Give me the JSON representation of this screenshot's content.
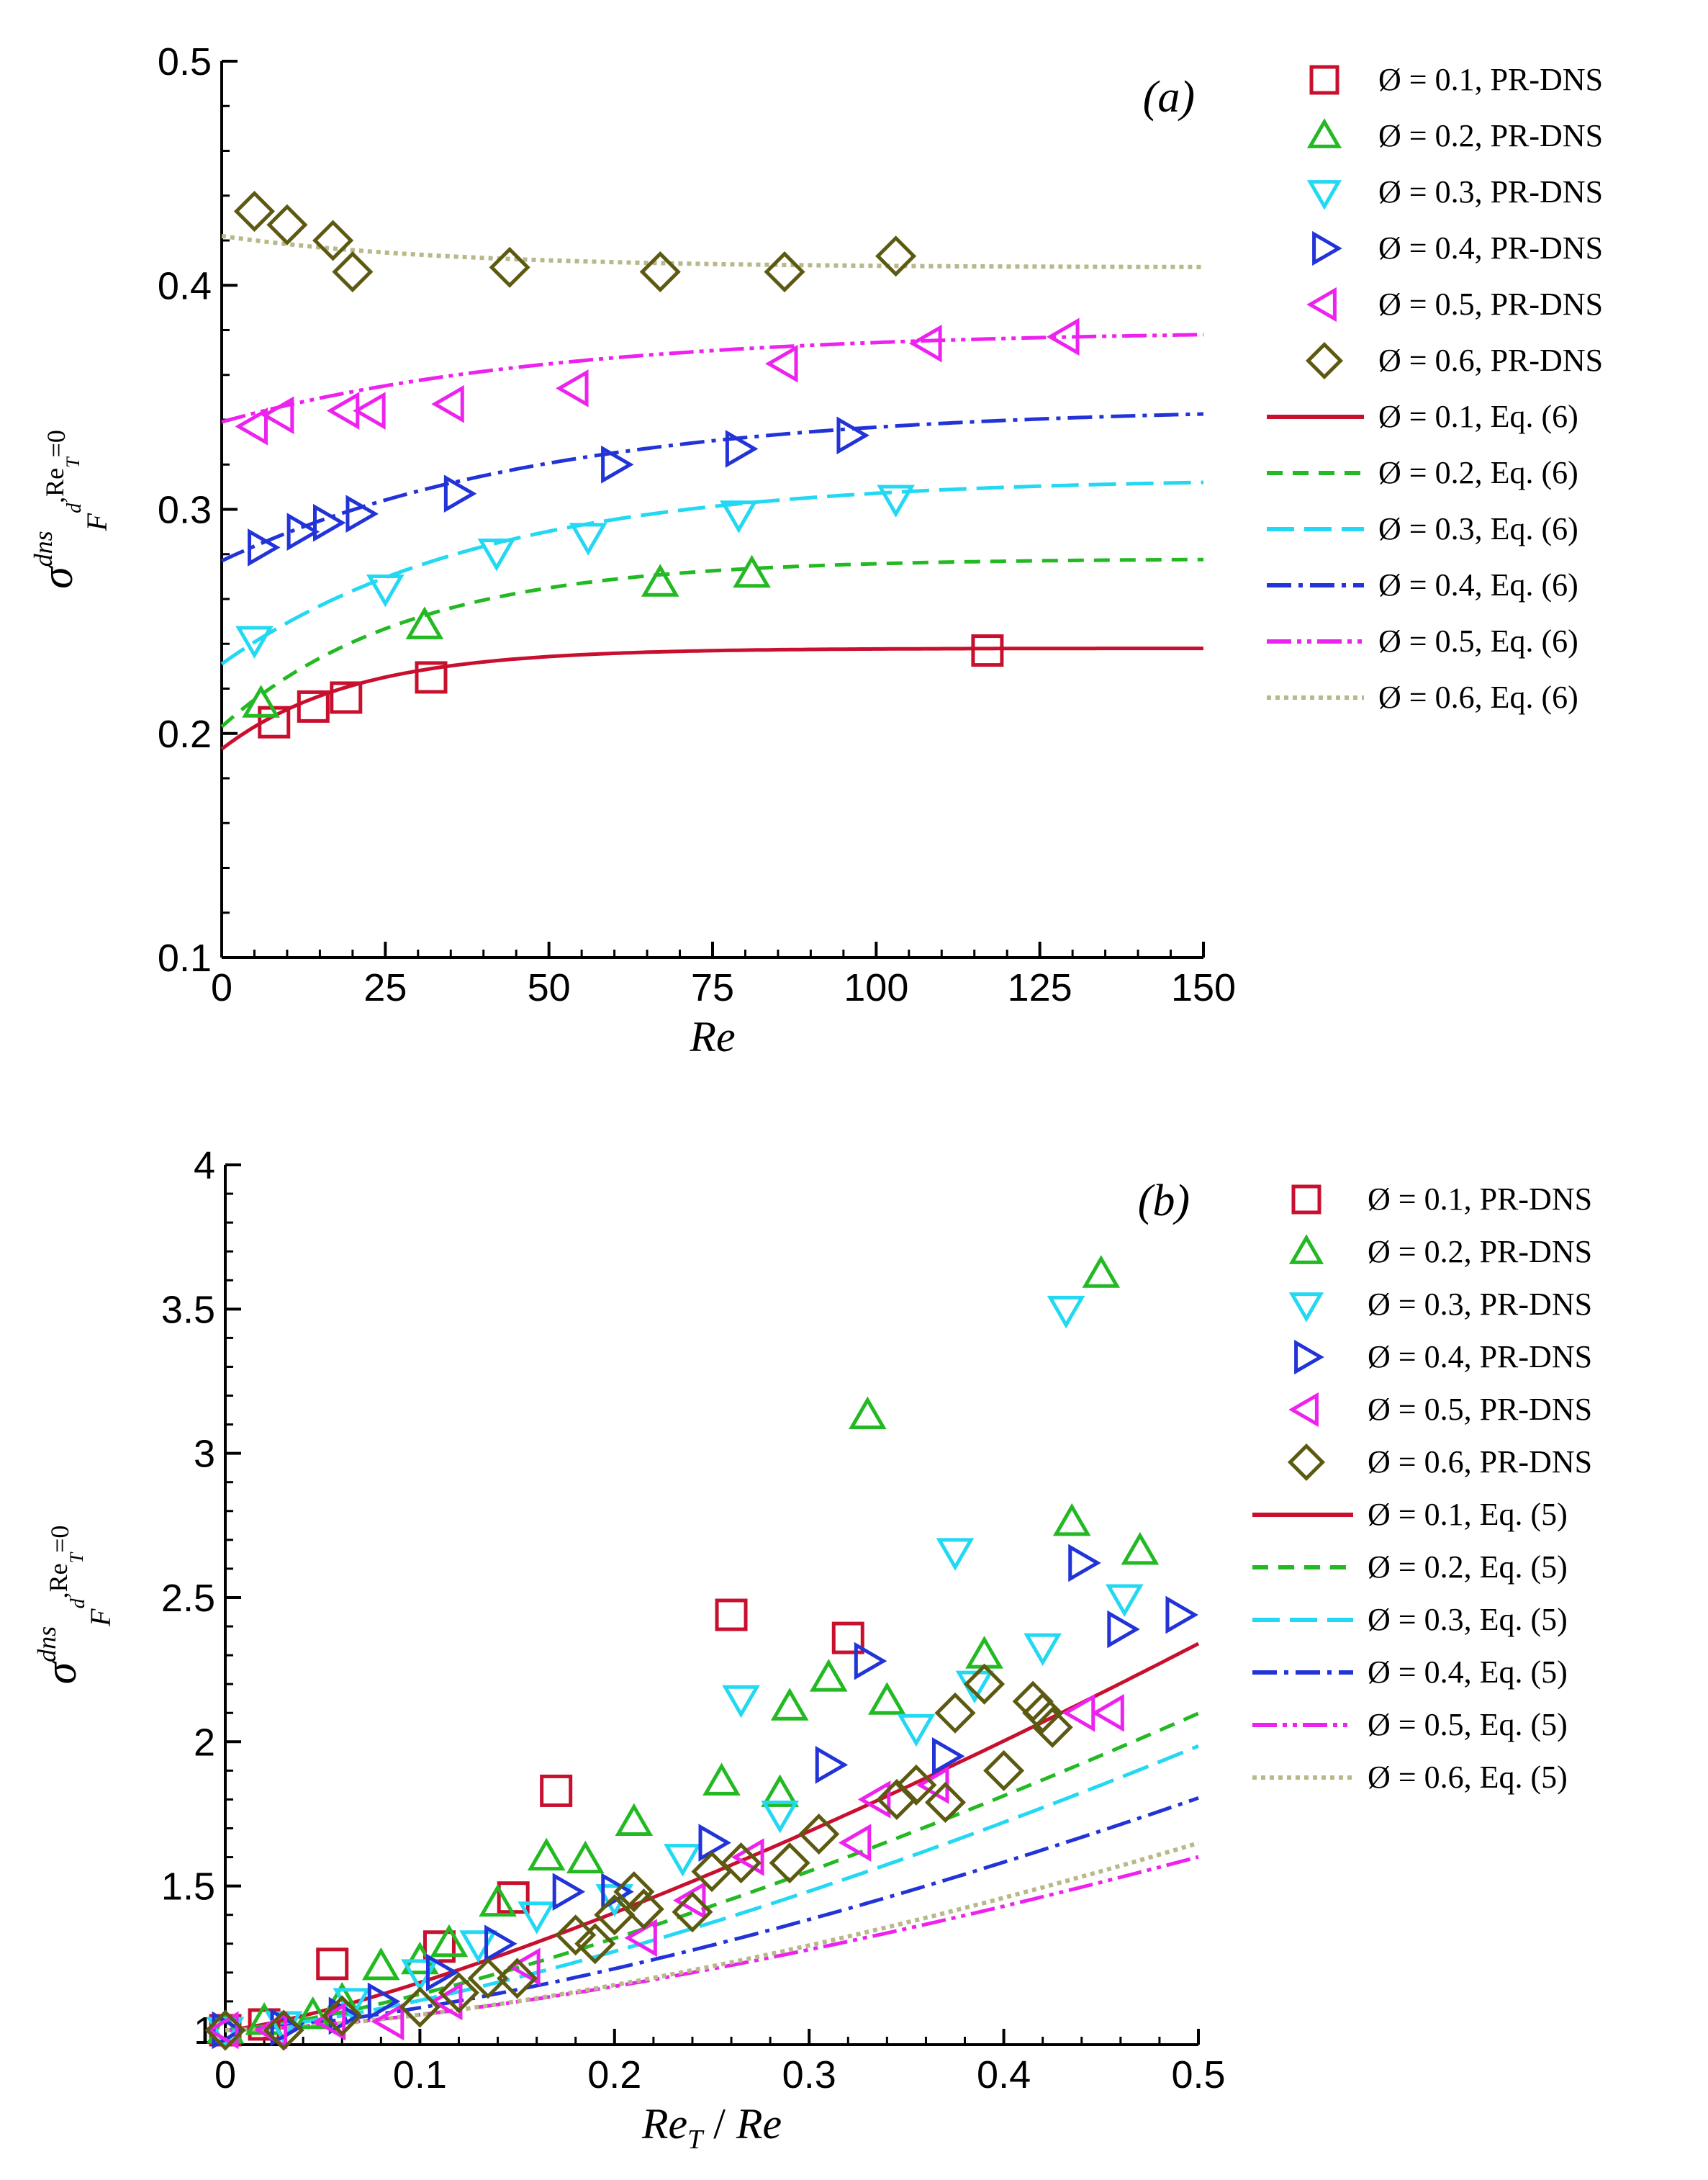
{
  "colors": [
    "#c8102e",
    "#22b922",
    "#22d8f2",
    "#2233d8",
    "#ee22ee",
    "#5c5a10"
  ],
  "series_labels": [
    "Ø = 0.1",
    "Ø = 0.2",
    "Ø = 0.3",
    "Ø = 0.4",
    "Ø = 0.5",
    "Ø = 0.6"
  ],
  "chart_data": [
    {
      "type": "scatter",
      "panel_label": "(a)",
      "xlabel": "Re",
      "ylabel": {
        "base": "σ",
        "sup": "dns",
        "sub": "F",
        "subsub": "d",
        "cond": ",Re",
        "condsub": "T",
        "condend": "=0"
      },
      "xlim": [
        0,
        150
      ],
      "ylim": [
        0.1,
        0.5
      ],
      "x_ticks": [
        0,
        25,
        50,
        75,
        100,
        125,
        150
      ],
      "x_tick_labels": [
        "0",
        "25",
        "50",
        "75",
        "100",
        "125",
        "150"
      ],
      "y_ticks": [
        0.1,
        0.2,
        0.3,
        0.4,
        0.5
      ],
      "y_tick_labels": [
        "0.1",
        "0.2",
        "0.3",
        "0.4",
        "0.5"
      ],
      "legend_markers": [
        "Ø = 0.1, PR-DNS",
        "Ø = 0.2, PR-DNS",
        "Ø = 0.3, PR-DNS",
        "Ø = 0.4, PR-DNS",
        "Ø = 0.5, PR-DNS",
        "Ø = 0.6, PR-DNS"
      ],
      "legend_lines": [
        "Ø = 0.1, Eq. (6)",
        "Ø = 0.2, Eq. (6)",
        "Ø = 0.3, Eq. (6)",
        "Ø = 0.4, Eq. (6)",
        "Ø = 0.5, Eq. (6)",
        "Ø = 0.6, Eq. (6)"
      ],
      "model_curves": [
        {
          "name": "Ø = 0.1, Eq. (6)",
          "y0": 0.193,
          "yinf": 0.238,
          "k": 0.05
        },
        {
          "name": "Ø = 0.2, Eq. (6)",
          "y0": 0.203,
          "yinf": 0.278,
          "k": 0.035
        },
        {
          "name": "Ø = 0.3, Eq. (6)",
          "y0": 0.231,
          "yinf": 0.314,
          "k": 0.025
        },
        {
          "name": "Ø = 0.4, Eq. (6)",
          "y0": 0.277,
          "yinf": 0.346,
          "k": 0.02
        },
        {
          "name": "Ø = 0.5, Eq. (6)",
          "y0": 0.339,
          "yinf": 0.38,
          "k": 0.02
        },
        {
          "name": "Ø = 0.6, Eq. (6)",
          "y0": 0.422,
          "yinf": 0.408,
          "k": 0.03
        }
      ],
      "series": [
        {
          "name": "Ø = 0.1, PR-DNS",
          "x": [
            8,
            14,
            19,
            32,
            117
          ],
          "y": [
            0.205,
            0.212,
            0.216,
            0.225,
            0.237
          ]
        },
        {
          "name": "Ø = 0.2, PR-DNS",
          "x": [
            6,
            31,
            67,
            81
          ],
          "y": [
            0.213,
            0.248,
            0.267,
            0.271
          ]
        },
        {
          "name": "Ø = 0.3, PR-DNS",
          "x": [
            5,
            25,
            42,
            56,
            79,
            103
          ],
          "y": [
            0.242,
            0.265,
            0.281,
            0.288,
            0.298,
            0.305
          ]
        },
        {
          "name": "Ø = 0.4, PR-DNS",
          "x": [
            6,
            12,
            16,
            21,
            36,
            60,
            79,
            96
          ],
          "y": [
            0.283,
            0.29,
            0.294,
            0.298,
            0.307,
            0.32,
            0.327,
            0.333
          ]
        },
        {
          "name": "Ø = 0.5, PR-DNS",
          "x": [
            5,
            9,
            19,
            23,
            35,
            54,
            86,
            108,
            129
          ],
          "y": [
            0.337,
            0.342,
            0.344,
            0.344,
            0.347,
            0.354,
            0.365,
            0.374,
            0.377
          ]
        },
        {
          "name": "Ø = 0.6, PR-DNS",
          "x": [
            5,
            10,
            17,
            20,
            44,
            67,
            86,
            103
          ],
          "y": [
            0.433,
            0.427,
            0.42,
            0.406,
            0.408,
            0.406,
            0.406,
            0.413
          ]
        }
      ]
    },
    {
      "type": "scatter",
      "panel_label": "(b)",
      "xlabel": "Re_T / Re",
      "ylabel": {
        "base": "σ",
        "sup": "dns",
        "sub": "F",
        "subsub": "d",
        "cond": ",Re",
        "condsub": "T",
        "condend": "=0"
      },
      "xlim": [
        0,
        0.5
      ],
      "ylim": [
        0.95,
        4
      ],
      "x_ticks": [
        0,
        0.1,
        0.2,
        0.3,
        0.4,
        0.5
      ],
      "x_tick_labels": [
        "0",
        "0.1",
        "0.2",
        "0.3",
        "0.4",
        "0.5"
      ],
      "y_ticks": [
        1,
        1.5,
        2,
        2.5,
        3,
        3.5,
        4
      ],
      "y_tick_labels": [
        "1",
        "1.5",
        "2",
        "2.5",
        "3",
        "3.5",
        "4"
      ],
      "legend_markers": [
        "Ø = 0.1, PR-DNS",
        "Ø = 0.2, PR-DNS",
        "Ø = 0.3, PR-DNS",
        "Ø = 0.4, PR-DNS",
        "Ø = 0.5, PR-DNS",
        "Ø = 0.6, PR-DNS"
      ],
      "legend_lines": [
        "Ø = 0.1, Eq. (5)",
        "Ø = 0.2, Eq. (5)",
        "Ø = 0.3, Eq. (5)",
        "Ø = 0.4, Eq. (5)",
        "Ø = 0.5, Eq. (5)",
        "Ø = 0.6, Eq. (5)"
      ],
      "model_curves": [
        {
          "name": "Ø = 0.1, Eq. (5)",
          "a": 3.3,
          "p": 1.3
        },
        {
          "name": "Ø = 0.2, Eq. (5)",
          "a": 2.8,
          "p": 1.35
        },
        {
          "name": "Ø = 0.3, Eq. (5)",
          "a": 2.6,
          "p": 1.4
        },
        {
          "name": "Ø = 0.4, Eq. (5)",
          "a": 2.2,
          "p": 1.45
        },
        {
          "name": "Ø = 0.5, Eq. (5)",
          "a": 1.7,
          "p": 1.5
        },
        {
          "name": "Ø = 0.6, Eq. (5)",
          "a": 1.9,
          "p": 1.55
        }
      ],
      "series": [
        {
          "name": "Ø = 0.1, PR-DNS",
          "x": [
            0.0,
            0.02,
            0.055,
            0.11,
            0.148,
            0.17,
            0.26,
            0.32
          ],
          "y": [
            1.0,
            1.02,
            1.23,
            1.29,
            1.46,
            1.83,
            2.44,
            2.36
          ]
        },
        {
          "name": "Ø = 0.2, PR-DNS",
          "x": [
            0.0,
            0.02,
            0.045,
            0.06,
            0.08,
            0.1,
            0.115,
            0.14,
            0.165,
            0.185,
            0.21,
            0.255,
            0.285,
            0.29,
            0.31,
            0.33,
            0.34,
            0.39,
            0.435,
            0.45,
            0.47
          ],
          "y": [
            1.0,
            1.03,
            1.05,
            1.1,
            1.22,
            1.24,
            1.3,
            1.44,
            1.6,
            1.59,
            1.72,
            1.86,
            1.82,
            2.12,
            2.22,
            3.13,
            2.14,
            2.3,
            2.76,
            3.62,
            2.66
          ]
        },
        {
          "name": "Ø = 0.3, PR-DNS",
          "x": [
            0.0,
            0.03,
            0.065,
            0.1,
            0.13,
            0.16,
            0.2,
            0.235,
            0.265,
            0.285,
            0.355,
            0.375,
            0.385,
            0.42,
            0.432,
            0.462
          ],
          "y": [
            1.0,
            1.02,
            1.1,
            1.2,
            1.3,
            1.4,
            1.46,
            1.6,
            2.15,
            1.75,
            2.05,
            2.66,
            2.2,
            2.33,
            3.5,
            2.5
          ]
        },
        {
          "name": "Ø = 0.4, PR-DNS",
          "x": [
            0.0,
            0.03,
            0.06,
            0.08,
            0.11,
            0.14,
            0.175,
            0.2,
            0.25,
            0.31,
            0.33,
            0.37,
            0.44,
            0.46,
            0.49
          ],
          "y": [
            1.0,
            1.01,
            1.05,
            1.1,
            1.2,
            1.3,
            1.48,
            1.48,
            1.65,
            1.92,
            2.28,
            1.95,
            2.62,
            2.39,
            2.44
          ]
        },
        {
          "name": "Ø = 0.5, PR-DNS",
          "x": [
            0.0,
            0.025,
            0.055,
            0.085,
            0.115,
            0.155,
            0.215,
            0.24,
            0.27,
            0.325,
            0.335,
            0.365,
            0.44,
            0.455
          ],
          "y": [
            1.0,
            1.0,
            1.03,
            1.03,
            1.1,
            1.22,
            1.32,
            1.45,
            1.6,
            1.65,
            1.8,
            1.85,
            2.1,
            2.1
          ]
        },
        {
          "name": "Ø = 0.6, PR-DNS",
          "x": [
            0.0,
            0.03,
            0.06,
            0.1,
            0.12,
            0.135,
            0.15,
            0.18,
            0.19,
            0.2,
            0.21,
            0.215,
            0.24,
            0.25,
            0.265,
            0.29,
            0.305,
            0.345,
            0.355,
            0.37,
            0.375,
            0.39,
            0.4,
            0.415,
            0.42,
            0.425
          ],
          "y": [
            1.0,
            1.0,
            1.05,
            1.08,
            1.13,
            1.18,
            1.18,
            1.33,
            1.3,
            1.4,
            1.48,
            1.42,
            1.41,
            1.55,
            1.58,
            1.58,
            1.68,
            1.8,
            1.85,
            1.79,
            2.1,
            2.2,
            1.9,
            2.14,
            2.1,
            2.05
          ]
        }
      ]
    }
  ]
}
